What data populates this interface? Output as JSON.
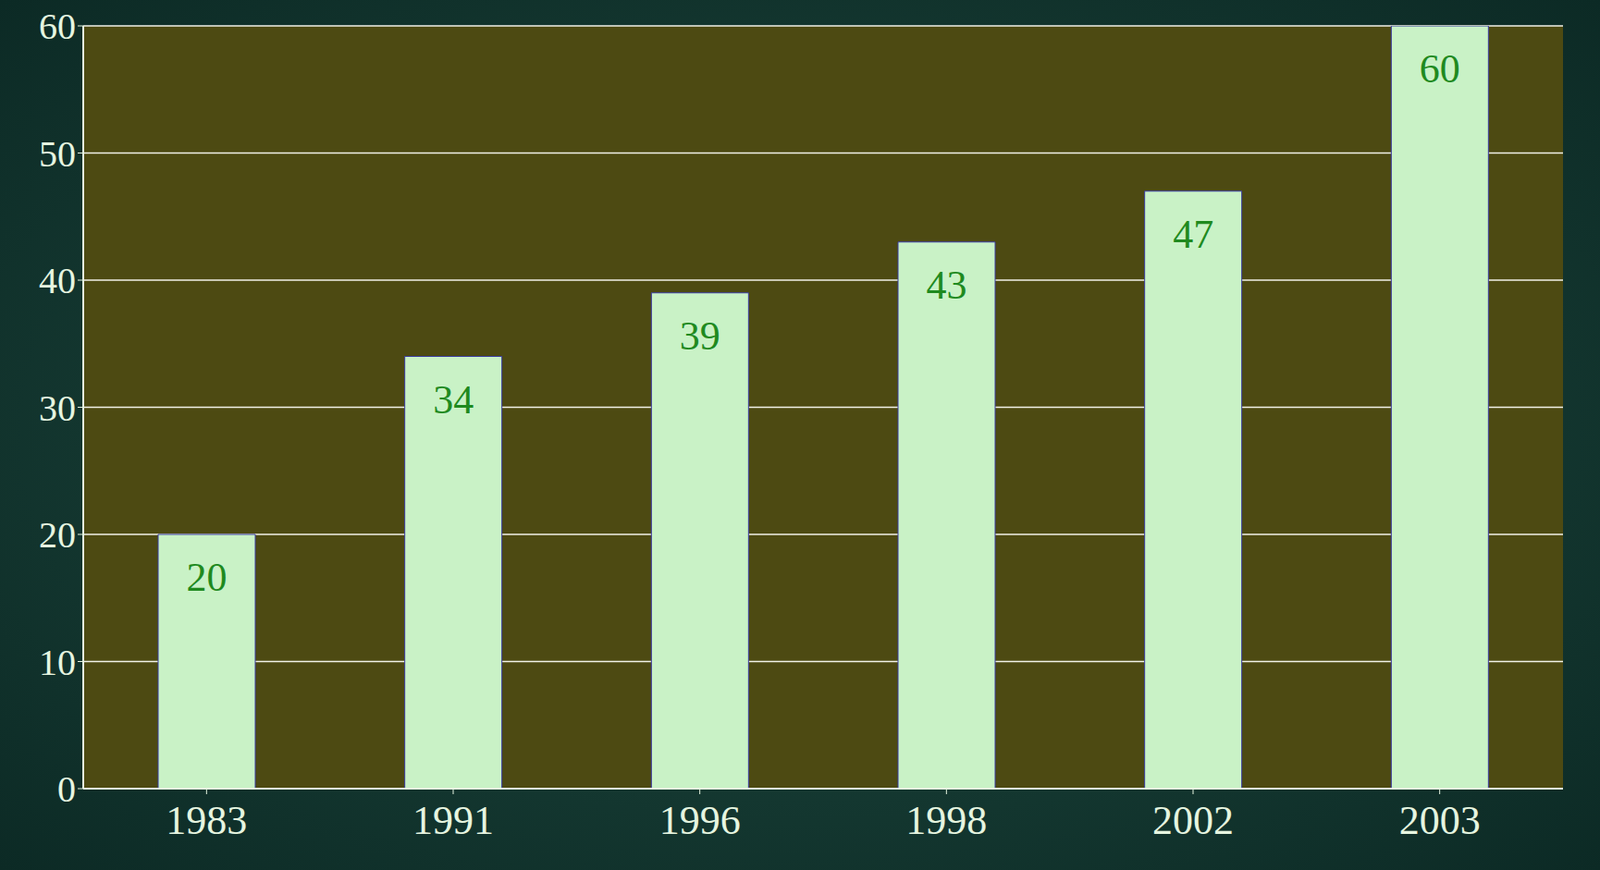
{
  "chart_data": {
    "type": "bar",
    "categories": [
      "1983",
      "1991",
      "1996",
      "1998",
      "2002",
      "2003"
    ],
    "values": [
      20,
      34,
      39,
      43,
      47,
      60
    ],
    "color": "#c9f2c6",
    "ylim": [
      0,
      60
    ],
    "yticks": [
      0,
      10,
      20,
      30,
      40,
      50,
      60
    ],
    "grid": true,
    "data_labels": true
  }
}
